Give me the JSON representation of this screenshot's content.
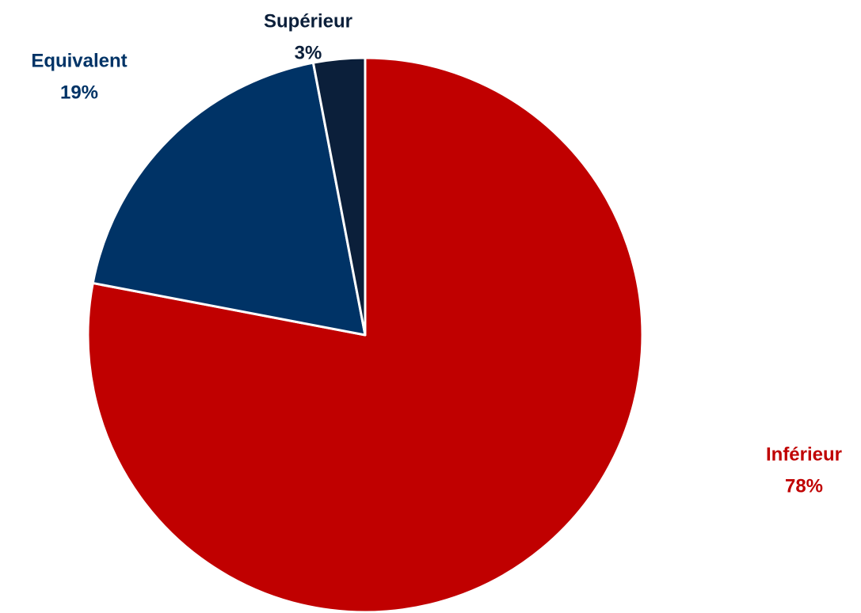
{
  "chart_data": {
    "type": "pie",
    "categories": [
      "Inférieur",
      "Equivalent",
      "Supérieur"
    ],
    "values": [
      78,
      19,
      3
    ],
    "value_labels": [
      "78%",
      "19%",
      "3%"
    ],
    "colors": [
      "#c00000",
      "#003366",
      "#0b1f3a"
    ]
  }
}
